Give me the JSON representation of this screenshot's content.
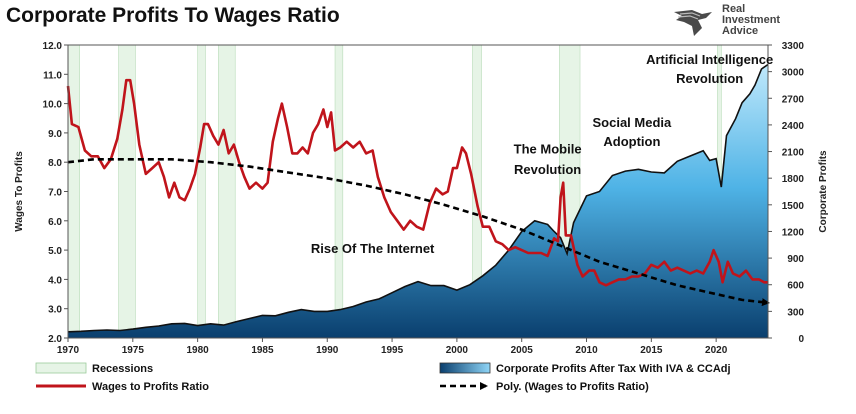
{
  "title": "Corporate Profits To Wages Ratio",
  "logo": {
    "line1": "Real",
    "line2": "Investment",
    "line3": "Advice"
  },
  "chart_data": {
    "type": "line",
    "xlim": [
      1970,
      2024
    ],
    "x_ticks": [
      1970,
      1975,
      1980,
      1985,
      1990,
      1995,
      2000,
      2005,
      2010,
      2015,
      2020
    ],
    "ylabel_left": "Wages To Profits",
    "ylim_left": [
      2.0,
      12.0
    ],
    "y_ticks_left": [
      "2.0",
      "3.0",
      "4.0",
      "5.0",
      "6.0",
      "7.0",
      "8.0",
      "9.0",
      "10.0",
      "11.0",
      "12.0"
    ],
    "ylabel_right": "Corporate Profits",
    "ylim_right": [
      0,
      3300
    ],
    "y_ticks_right": [
      0,
      300,
      600,
      900,
      1200,
      1500,
      1800,
      2100,
      2400,
      2700,
      3000,
      3300
    ],
    "recessions": [
      [
        1970.0,
        1970.9
      ],
      [
        1973.9,
        1975.2
      ],
      [
        1980.0,
        1980.6
      ],
      [
        1981.6,
        1982.9
      ],
      [
        1990.6,
        1991.2
      ],
      [
        2001.2,
        2001.9
      ],
      [
        2007.9,
        2009.5
      ],
      [
        2020.1,
        2020.4
      ]
    ],
    "series": [
      {
        "name": "Wages to Profits Ratio",
        "axis": "left",
        "color": "#c0141b",
        "points": [
          [
            1970.0,
            10.6
          ],
          [
            1970.3,
            9.3
          ],
          [
            1970.8,
            9.2
          ],
          [
            1971.3,
            8.4
          ],
          [
            1971.8,
            8.2
          ],
          [
            1972.3,
            8.2
          ],
          [
            1972.8,
            7.8
          ],
          [
            1973.3,
            8.1
          ],
          [
            1973.8,
            8.8
          ],
          [
            1974.2,
            9.8
          ],
          [
            1974.5,
            10.8
          ],
          [
            1974.8,
            10.8
          ],
          [
            1975.1,
            10.0
          ],
          [
            1975.5,
            8.6
          ],
          [
            1976.0,
            7.6
          ],
          [
            1976.5,
            7.8
          ],
          [
            1977.0,
            8.0
          ],
          [
            1977.4,
            7.5
          ],
          [
            1977.8,
            6.8
          ],
          [
            1978.2,
            7.3
          ],
          [
            1978.6,
            6.8
          ],
          [
            1979.0,
            6.7
          ],
          [
            1979.4,
            7.1
          ],
          [
            1979.8,
            7.6
          ],
          [
            1980.2,
            8.5
          ],
          [
            1980.5,
            9.3
          ],
          [
            1980.8,
            9.3
          ],
          [
            1981.2,
            8.9
          ],
          [
            1981.6,
            8.6
          ],
          [
            1982.0,
            9.1
          ],
          [
            1982.4,
            8.3
          ],
          [
            1982.8,
            8.6
          ],
          [
            1983.2,
            8.0
          ],
          [
            1983.6,
            7.5
          ],
          [
            1984.0,
            7.1
          ],
          [
            1984.5,
            7.3
          ],
          [
            1985.0,
            7.1
          ],
          [
            1985.4,
            7.3
          ],
          [
            1985.8,
            8.7
          ],
          [
            1986.2,
            9.5
          ],
          [
            1986.5,
            10.0
          ],
          [
            1986.9,
            9.2
          ],
          [
            1987.3,
            8.3
          ],
          [
            1987.7,
            8.3
          ],
          [
            1988.1,
            8.5
          ],
          [
            1988.5,
            8.3
          ],
          [
            1988.9,
            9.0
          ],
          [
            1989.3,
            9.3
          ],
          [
            1989.7,
            9.8
          ],
          [
            1990.0,
            9.2
          ],
          [
            1990.3,
            9.7
          ],
          [
            1990.6,
            8.4
          ],
          [
            1991.0,
            8.5
          ],
          [
            1991.5,
            8.7
          ],
          [
            1992.0,
            8.5
          ],
          [
            1992.5,
            8.7
          ],
          [
            1993.0,
            8.3
          ],
          [
            1993.5,
            8.4
          ],
          [
            1993.9,
            7.5
          ],
          [
            1994.4,
            6.8
          ],
          [
            1994.9,
            6.3
          ],
          [
            1995.4,
            6.0
          ],
          [
            1995.9,
            5.7
          ],
          [
            1996.4,
            6.0
          ],
          [
            1996.9,
            5.8
          ],
          [
            1997.4,
            5.7
          ],
          [
            1997.9,
            6.6
          ],
          [
            1998.4,
            7.1
          ],
          [
            1998.9,
            6.9
          ],
          [
            1999.3,
            7.0
          ],
          [
            1999.7,
            7.8
          ],
          [
            2000.0,
            7.8
          ],
          [
            2000.4,
            8.5
          ],
          [
            2000.7,
            8.3
          ],
          [
            2001.1,
            7.6
          ],
          [
            2001.6,
            6.5
          ],
          [
            2002.0,
            5.8
          ],
          [
            2002.5,
            5.8
          ],
          [
            2003.0,
            5.3
          ],
          [
            2003.5,
            5.2
          ],
          [
            2004.0,
            5.0
          ],
          [
            2004.5,
            5.1
          ],
          [
            2005.0,
            5.0
          ],
          [
            2005.5,
            4.9
          ],
          [
            2006.0,
            4.9
          ],
          [
            2006.5,
            4.9
          ],
          [
            2007.0,
            4.8
          ],
          [
            2007.5,
            5.4
          ],
          [
            2007.8,
            5.3
          ],
          [
            2008.0,
            6.8
          ],
          [
            2008.2,
            7.3
          ],
          [
            2008.4,
            5.5
          ],
          [
            2008.8,
            5.5
          ],
          [
            2009.3,
            4.5
          ],
          [
            2009.7,
            4.1
          ],
          [
            2010.2,
            4.3
          ],
          [
            2010.6,
            4.3
          ],
          [
            2011.0,
            3.9
          ],
          [
            2011.5,
            3.8
          ],
          [
            2012.0,
            3.9
          ],
          [
            2012.5,
            4.0
          ],
          [
            2013.0,
            4.0
          ],
          [
            2013.5,
            4.1
          ],
          [
            2014.0,
            4.1
          ],
          [
            2014.5,
            4.2
          ],
          [
            2015.0,
            4.5
          ],
          [
            2015.5,
            4.4
          ],
          [
            2016.0,
            4.6
          ],
          [
            2016.5,
            4.3
          ],
          [
            2017.0,
            4.4
          ],
          [
            2017.5,
            4.3
          ],
          [
            2018.0,
            4.2
          ],
          [
            2018.5,
            4.3
          ],
          [
            2019.0,
            4.2
          ],
          [
            2019.5,
            4.6
          ],
          [
            2019.8,
            5.0
          ],
          [
            2020.2,
            4.6
          ],
          [
            2020.5,
            3.9
          ],
          [
            2020.9,
            4.6
          ],
          [
            2021.3,
            4.2
          ],
          [
            2021.8,
            4.1
          ],
          [
            2022.3,
            4.3
          ],
          [
            2022.8,
            4.0
          ],
          [
            2023.3,
            4.0
          ],
          [
            2023.7,
            3.9
          ],
          [
            2024.0,
            3.9
          ]
        ]
      },
      {
        "name": "Corporate Profits After Tax With IVA & CCAdj",
        "axis": "right",
        "color": "#1e8fcc",
        "points": [
          [
            1970.0,
            70
          ],
          [
            1971.0,
            75
          ],
          [
            1972.0,
            85
          ],
          [
            1973.0,
            90
          ],
          [
            1974.0,
            85
          ],
          [
            1975.0,
            100
          ],
          [
            1976.0,
            120
          ],
          [
            1977.0,
            135
          ],
          [
            1978.0,
            160
          ],
          [
            1979.0,
            165
          ],
          [
            1980.0,
            140
          ],
          [
            1981.0,
            160
          ],
          [
            1982.0,
            145
          ],
          [
            1983.0,
            185
          ],
          [
            1984.0,
            220
          ],
          [
            1985.0,
            255
          ],
          [
            1986.0,
            250
          ],
          [
            1987.0,
            290
          ],
          [
            1988.0,
            320
          ],
          [
            1989.0,
            300
          ],
          [
            1990.0,
            300
          ],
          [
            1991.0,
            320
          ],
          [
            1992.0,
            355
          ],
          [
            1993.0,
            405
          ],
          [
            1994.0,
            440
          ],
          [
            1995.0,
            510
          ],
          [
            1996.0,
            580
          ],
          [
            1997.0,
            635
          ],
          [
            1998.0,
            590
          ],
          [
            1999.0,
            590
          ],
          [
            2000.0,
            540
          ],
          [
            2001.0,
            600
          ],
          [
            2002.0,
            700
          ],
          [
            2003.0,
            820
          ],
          [
            2004.0,
            990
          ],
          [
            2005.0,
            1200
          ],
          [
            2006.0,
            1320
          ],
          [
            2007.0,
            1280
          ],
          [
            2007.5,
            1200
          ],
          [
            2008.0,
            1130
          ],
          [
            2008.5,
            950
          ],
          [
            2009.0,
            1300
          ],
          [
            2010.0,
            1600
          ],
          [
            2011.0,
            1650
          ],
          [
            2012.0,
            1830
          ],
          [
            2013.0,
            1880
          ],
          [
            2014.0,
            1900
          ],
          [
            2015.0,
            1870
          ],
          [
            2016.0,
            1860
          ],
          [
            2017.0,
            1990
          ],
          [
            2018.0,
            2050
          ],
          [
            2019.0,
            2110
          ],
          [
            2019.5,
            2000
          ],
          [
            2020.0,
            2020
          ],
          [
            2020.4,
            1700
          ],
          [
            2020.8,
            2280
          ],
          [
            2021.5,
            2470
          ],
          [
            2022.0,
            2650
          ],
          [
            2022.6,
            2750
          ],
          [
            2023.0,
            2850
          ],
          [
            2023.5,
            3030
          ],
          [
            2024.0,
            3080
          ]
        ]
      },
      {
        "name": "Poly. (Wages to Profits Ratio)",
        "axis": "left",
        "color": "#000000",
        "points": [
          [
            1970,
            8.0
          ],
          [
            1972,
            8.1
          ],
          [
            1975,
            8.1
          ],
          [
            1978,
            8.1
          ],
          [
            1981,
            8.0
          ],
          [
            1984,
            7.85
          ],
          [
            1987,
            7.65
          ],
          [
            1990,
            7.45
          ],
          [
            1993,
            7.2
          ],
          [
            1996,
            6.9
          ],
          [
            1999,
            6.55
          ],
          [
            2002,
            6.15
          ],
          [
            2005,
            5.7
          ],
          [
            2008,
            5.15
          ],
          [
            2011,
            4.6
          ],
          [
            2014,
            4.2
          ],
          [
            2017,
            3.8
          ],
          [
            2020,
            3.5
          ],
          [
            2022,
            3.3
          ],
          [
            2024,
            3.2
          ]
        ]
      }
    ],
    "annotations": [
      {
        "text": "Rise Of The Internet",
        "x": 1993.5,
        "y": 4.9
      },
      {
        "text": "The Mobile",
        "x": 2007,
        "y": 8.3
      },
      {
        "text": "Revolution",
        "x": 2007,
        "y": 7.6
      },
      {
        "text": "Social Media",
        "x": 2013.5,
        "y": 9.2
      },
      {
        "text": "Adoption",
        "x": 2013.5,
        "y": 8.55
      },
      {
        "text": "Artificial Intelligence",
        "x": 2019.5,
        "y": 11.35
      },
      {
        "text": "Revolution",
        "x": 2019.5,
        "y": 10.7
      }
    ],
    "legend": [
      {
        "label": "Recessions",
        "kind": "recession"
      },
      {
        "label": "Corporate Profits After Tax With IVA & CCAdj",
        "kind": "area"
      },
      {
        "label": "Wages to Profits Ratio",
        "kind": "line-red"
      },
      {
        "label": "Poly. (Wages to Profits Ratio)",
        "kind": "line-dash"
      }
    ],
    "grid": false,
    "legend_position": "bottom"
  }
}
